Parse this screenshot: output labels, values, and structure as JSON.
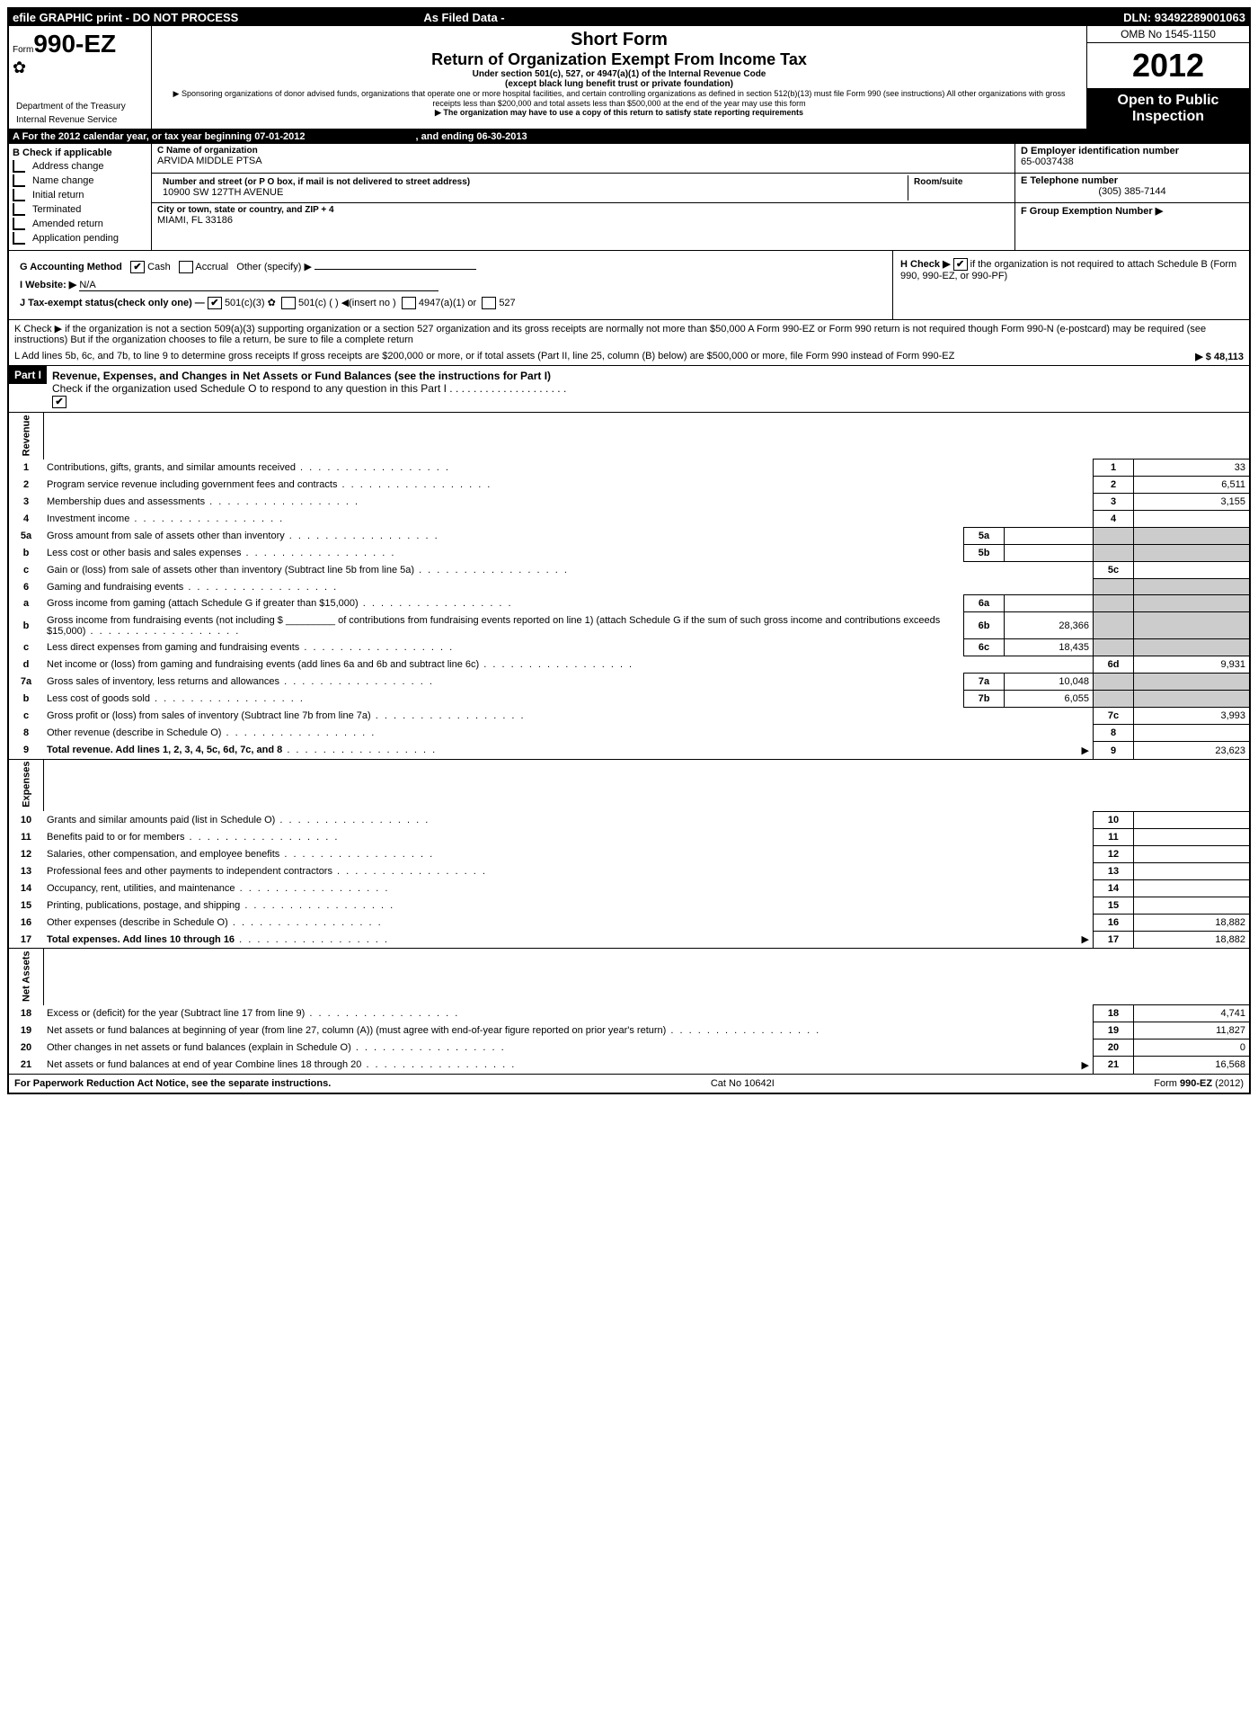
{
  "topbar": {
    "left": "efile GRAPHIC print - DO NOT PROCESS",
    "mid": "As Filed Data -",
    "right": "DLN: 93492289001063"
  },
  "header": {
    "form_prefix": "Form",
    "form_no": "990-EZ",
    "short_form": "Short Form",
    "title": "Return of Organization Exempt From Income Tax",
    "sub1": "Under section 501(c), 527, or 4947(a)(1) of the Internal Revenue Code",
    "sub2": "(except black lung benefit trust or private foundation)",
    "sub3": "▶ Sponsoring organizations of donor advised funds, organizations that operate one or more hospital facilities, and certain controlling organizations as defined in section 512(b)(13) must file Form 990 (see instructions) All other organizations with gross receipts less than $200,000 and total assets less than $500,000 at the end of the year may use this form",
    "sub4": "▶ The organization may have to use a copy of this return to satisfy state reporting requirements",
    "dept1": "Department of the Treasury",
    "dept2": "Internal Revenue Service",
    "omb": "OMB No 1545-1150",
    "year": "2012",
    "open1": "Open to Public",
    "open2": "Inspection"
  },
  "row_a": {
    "text_left": "A  For the 2012 calendar year, or tax year beginning 07-01-2012",
    "text_right": ", and ending 06-30-2013"
  },
  "col_b": {
    "header": "B  Check if applicable",
    "items": [
      "Address change",
      "Name change",
      "Initial return",
      "Terminated",
      "Amended return",
      "Application pending"
    ]
  },
  "col_c": {
    "name_label": "C Name of organization",
    "name": "ARVIDA MIDDLE PTSA",
    "street_label": "Number and street (or P O box, if mail is not delivered to street address)",
    "room_label": "Room/suite",
    "street": "10900 SW 127TH AVENUE",
    "city_label": "City or town, state or country, and ZIP + 4",
    "city": "MIAMI, FL  33186"
  },
  "col_d": {
    "d_label": "D Employer identification number",
    "ein": "65-0037438",
    "e_label": "E Telephone number",
    "phone": "(305) 385-7144",
    "f_label": "F Group Exemption Number  ▶"
  },
  "g_line": {
    "label": "G Accounting Method",
    "cash": "Cash",
    "accrual": "Accrual",
    "other": "Other (specify) ▶"
  },
  "h_line": {
    "text1": "H   Check ▶",
    "text2": "if the organization is not required to attach Schedule B (Form 990, 990-EZ, or 990-PF)"
  },
  "i_line": {
    "label": "I Website: ▶",
    "value": "N/A"
  },
  "j_line": {
    "label": "J Tax-exempt status(check only one) —",
    "o1": "501(c)(3)",
    "o2": "501(c) (   ) ◀(insert no )",
    "o3": "4947(a)(1) or",
    "o4": "527"
  },
  "k_line": "K Check ▶   if the organization is not a section 509(a)(3) supporting organization or a section 527 organization and its gross receipts are normally not more than $50,000  A Form 990-EZ or Form 990 return is not required though Form 990-N (e-postcard) may be required (see instructions)  But if the organization chooses to file a return, be sure to file a complete return",
  "l_line": {
    "text": "L Add lines 5b, 6c, and 7b, to line 9 to determine gross receipts  If gross receipts are $200,000 or more, or if total assets (Part II, line 25, column (B) below) are $500,000 or more, file Form 990 instead of Form 990-EZ",
    "value": "▶ $ 48,113"
  },
  "part1": {
    "label": "Part I",
    "title": "Revenue, Expenses, and Changes in Net Assets or Fund Balances (see the instructions for Part I)",
    "check_text": "Check if the organization used Schedule O to respond to any question in this Part I  .  .  .  .  .  .  .  .  .  .  .  .  .  .  .  .  .  .  .  ."
  },
  "sections": {
    "revenue": "Revenue",
    "expenses": "Expenses",
    "net_assets": "Net Assets"
  },
  "lines": [
    {
      "n": "1",
      "d": "Contributions, gifts, grants, and similar amounts received",
      "box": "1",
      "v": "33"
    },
    {
      "n": "2",
      "d": "Program service revenue including government fees and contracts",
      "box": "2",
      "v": "6,511"
    },
    {
      "n": "3",
      "d": "Membership dues and assessments",
      "box": "3",
      "v": "3,155"
    },
    {
      "n": "4",
      "d": "Investment income",
      "box": "4",
      "v": ""
    },
    {
      "n": "5a",
      "d": "Gross amount from sale of assets other than inventory",
      "mini": "5a",
      "miniv": "",
      "shaded": true
    },
    {
      "n": "b",
      "d": "Less  cost or other basis and sales expenses",
      "mini": "5b",
      "miniv": "",
      "shaded": true
    },
    {
      "n": "c",
      "d": "Gain or (loss) from sale of assets other than inventory (Subtract line 5b from line 5a)",
      "box": "5c",
      "v": ""
    },
    {
      "n": "6",
      "d": "Gaming and fundraising events",
      "shaded": true
    },
    {
      "n": "a",
      "d": "Gross income from gaming (attach Schedule G if greater than $15,000)",
      "mini": "6a",
      "miniv": "",
      "shaded": true
    },
    {
      "n": "b",
      "d": "Gross income from fundraising events (not including $ _________ of contributions from fundraising events reported on line 1) (attach Schedule G if the sum of such gross income and contributions exceeds $15,000)",
      "mini": "6b",
      "miniv": "28,366",
      "shaded": true
    },
    {
      "n": "c",
      "d": "Less  direct expenses from gaming and fundraising events",
      "mini": "6c",
      "miniv": "18,435",
      "shaded": true
    },
    {
      "n": "d",
      "d": "Net income or (loss) from gaming and fundraising events (add lines 6a and 6b and subtract line 6c)",
      "box": "6d",
      "v": "9,931"
    },
    {
      "n": "7a",
      "d": "Gross sales of inventory, less returns and allowances",
      "mini": "7a",
      "miniv": "10,048",
      "shaded": true
    },
    {
      "n": "b",
      "d": "Less  cost of goods sold",
      "mini": "7b",
      "miniv": "6,055",
      "shaded": true
    },
    {
      "n": "c",
      "d": "Gross profit or (loss) from sales of inventory (Subtract line 7b from line 7a)",
      "box": "7c",
      "v": "3,993"
    },
    {
      "n": "8",
      "d": "Other revenue (describe in Schedule O)",
      "box": "8",
      "v": ""
    },
    {
      "n": "9",
      "d": "Total revenue. Add lines 1, 2, 3, 4, 5c, 6d, 7c, and 8",
      "box": "9",
      "v": "23,623",
      "bold": true,
      "arrow": true
    }
  ],
  "exp_lines": [
    {
      "n": "10",
      "d": "Grants and similar amounts paid (list in Schedule O)",
      "box": "10",
      "v": ""
    },
    {
      "n": "11",
      "d": "Benefits paid to or for members",
      "box": "11",
      "v": ""
    },
    {
      "n": "12",
      "d": "Salaries, other compensation, and employee benefits",
      "box": "12",
      "v": ""
    },
    {
      "n": "13",
      "d": "Professional fees and other payments to independent contractors",
      "box": "13",
      "v": ""
    },
    {
      "n": "14",
      "d": "Occupancy, rent, utilities, and maintenance",
      "box": "14",
      "v": ""
    },
    {
      "n": "15",
      "d": "Printing, publications, postage, and shipping",
      "box": "15",
      "v": ""
    },
    {
      "n": "16",
      "d": "Other expenses (describe in Schedule O)",
      "box": "16",
      "v": "18,882"
    },
    {
      "n": "17",
      "d": "Total expenses. Add lines 10 through 16",
      "box": "17",
      "v": "18,882",
      "bold": true,
      "arrow": true
    }
  ],
  "net_lines": [
    {
      "n": "18",
      "d": "Excess or (deficit) for the year (Subtract line 17 from line 9)",
      "box": "18",
      "v": "4,741"
    },
    {
      "n": "19",
      "d": "Net assets or fund balances at beginning of year (from line 27, column (A)) (must agree with end-of-year figure reported on prior year's return)",
      "box": "19",
      "v": "11,827"
    },
    {
      "n": "20",
      "d": "Other changes in net assets or fund balances (explain in Schedule O)",
      "box": "20",
      "v": "0"
    },
    {
      "n": "21",
      "d": "Net assets or fund balances at end of year  Combine lines 18 through 20",
      "box": "21",
      "v": "16,568",
      "arrow": true
    }
  ],
  "footer": {
    "left": "For Paperwork Reduction Act Notice, see the separate instructions.",
    "mid": "Cat No 10642I",
    "right": "Form 990-EZ (2012)"
  }
}
